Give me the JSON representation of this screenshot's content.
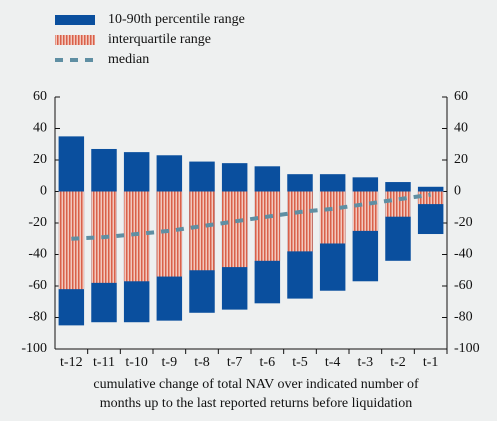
{
  "chart_data": {
    "type": "range_bar",
    "categories": [
      "t-12",
      "t-11",
      "t-10",
      "t-9",
      "t-8",
      "t-7",
      "t-6",
      "t-5",
      "t-4",
      "t-3",
      "t-2",
      "t-1"
    ],
    "series": [
      {
        "name": "10-90th percentile range",
        "color": "#0a4f9e",
        "low": [
          -85,
          -83,
          -83,
          -82,
          -77,
          -75,
          -71,
          -68,
          -63,
          -57,
          -44,
          -27
        ],
        "high": [
          35,
          27,
          25,
          23,
          19,
          18,
          16,
          11,
          11,
          9,
          6,
          3
        ]
      },
      {
        "name": "interquartile range",
        "color": "#d9614a",
        "low": [
          -62,
          -58,
          -57,
          -54,
          -50,
          -48,
          -44,
          -38,
          -33,
          -25,
          -16,
          -8
        ],
        "high": [
          0,
          0,
          0,
          0,
          0,
          0,
          0,
          0,
          0,
          0,
          0,
          0
        ]
      },
      {
        "name": "median",
        "color": "#5f8fa3",
        "values": [
          -30,
          -29,
          -27,
          -25,
          -22,
          -19,
          -16,
          -13,
          -11,
          -8,
          -5,
          -2
        ]
      }
    ],
    "ylim": [
      -100,
      60
    ],
    "yticks": [
      -100,
      -80,
      -60,
      -40,
      -20,
      0,
      20,
      40,
      60
    ],
    "xlabel": [
      "cumulative change of total NAV over indicated number of",
      "months up to the last reported returns before liquidation"
    ]
  }
}
